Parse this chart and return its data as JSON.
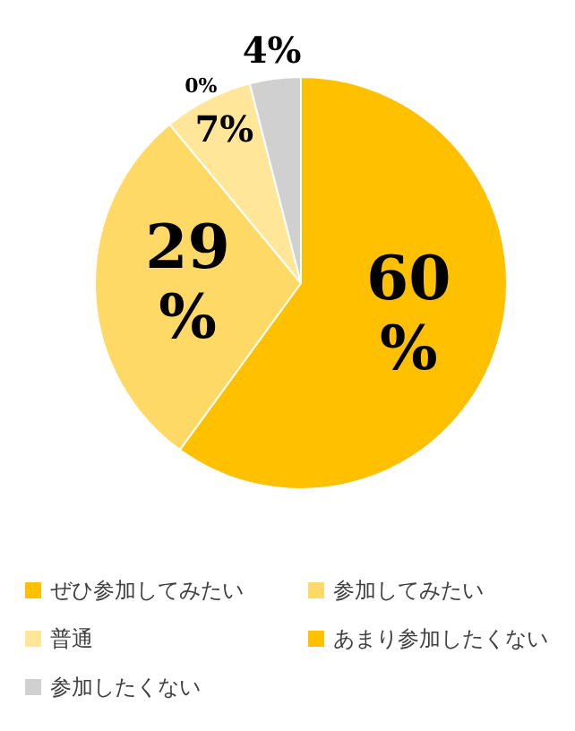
{
  "chart_data": {
    "type": "pie",
    "categories": [
      "ぜひ参加してみたい",
      "参加してみたい",
      "普通",
      "あまり参加したくない",
      "参加したくない"
    ],
    "values": [
      60,
      29,
      7,
      0,
      4
    ],
    "colors": [
      "#ffc000",
      "#ffd966",
      "#ffe699",
      "#ffc000",
      "#d0d0d0"
    ],
    "value_labels": [
      "60%",
      "29%",
      "7%",
      "0%",
      "4%"
    ],
    "legend": "bottom"
  }
}
